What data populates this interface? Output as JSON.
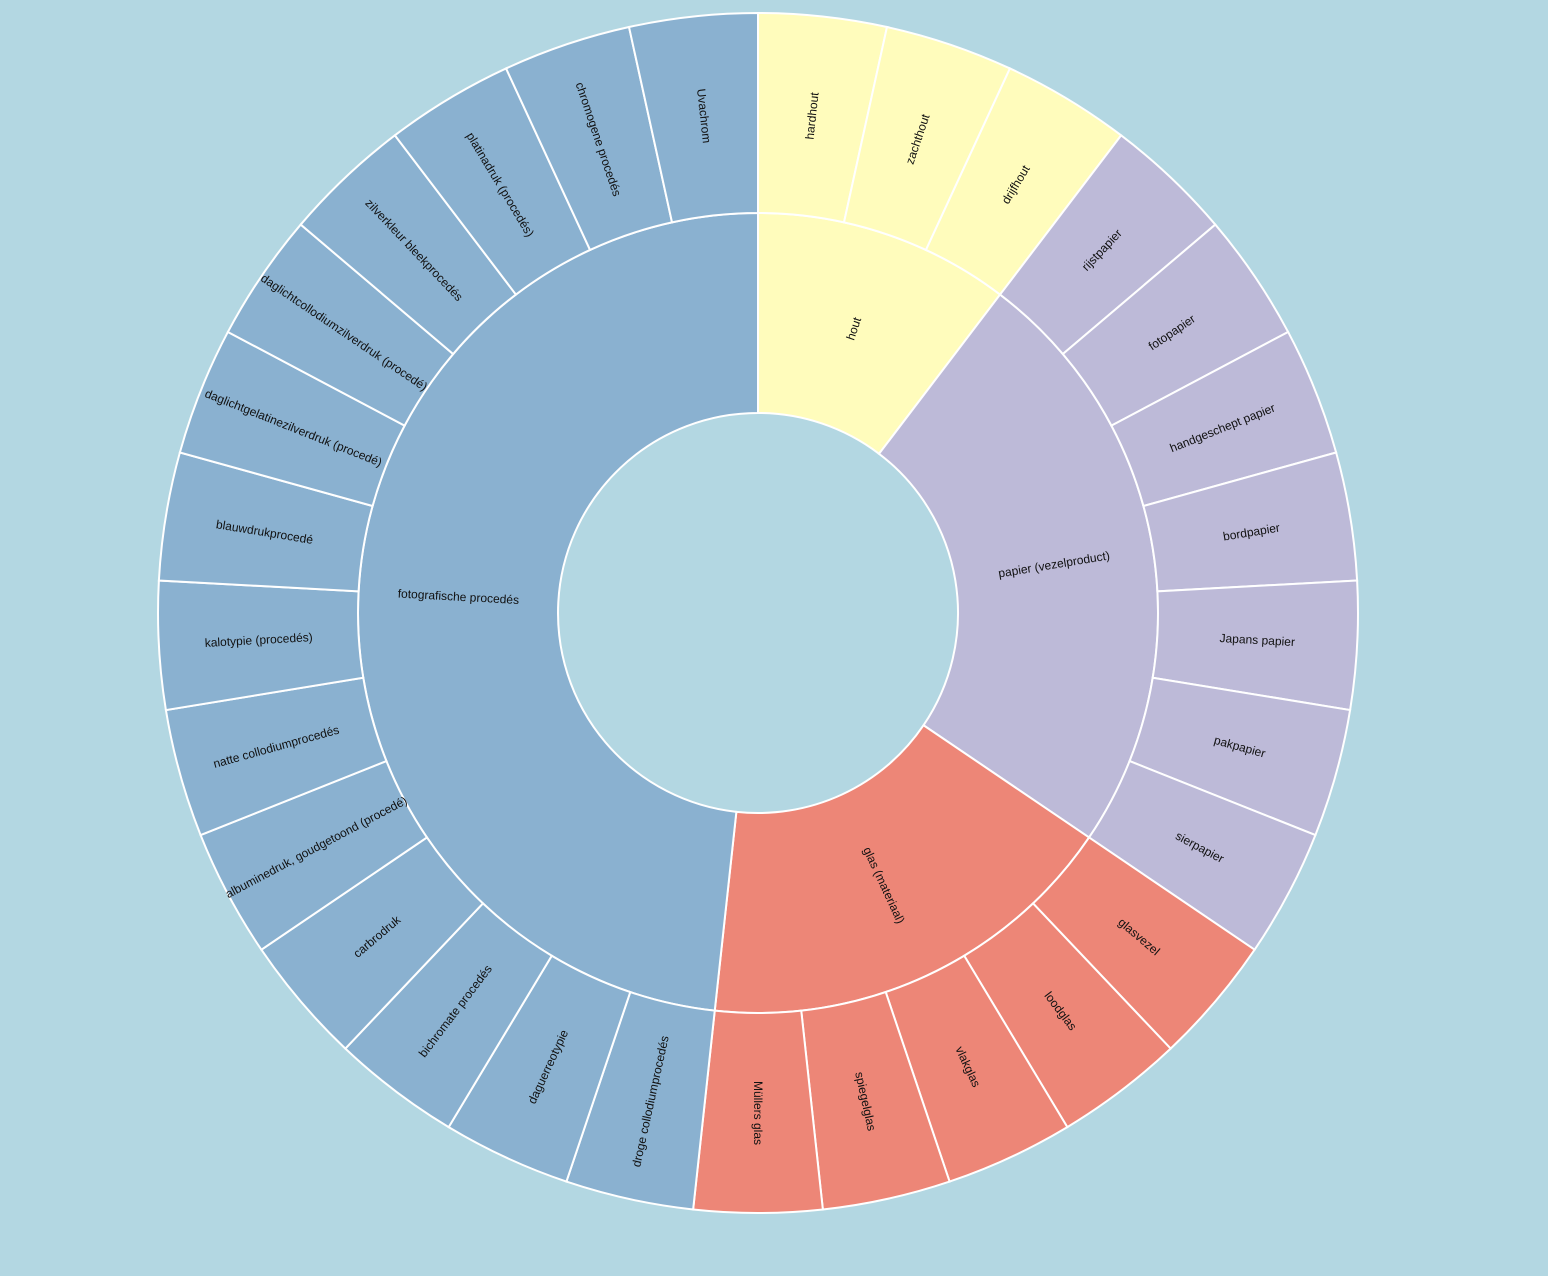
{
  "colors": {
    "background": "#b3d7e2",
    "fotografische procedés": "#8ab1d0",
    "hout": "#fffcbc",
    "papier (vezelproduct)": "#bdbad8",
    "glas (materiaal)": "#ed8677",
    "separator": "#ffffff"
  },
  "chart_data": {
    "type": "sunburst",
    "groups": [
      {
        "name": "hout",
        "color": "#fffcbc",
        "children": [
          "hardhout",
          "zachthout",
          "drijfhout"
        ]
      },
      {
        "name": "papier (vezelproduct)",
        "color": "#bdbad8",
        "children": [
          "rijstpapier",
          "fotopapier",
          "handgeschept papier",
          "bordpapier",
          "Japans papier",
          "pakpapier",
          "sierpapier"
        ]
      },
      {
        "name": "glas (materiaal)",
        "color": "#ed8677",
        "children": [
          "glasvezel",
          "loodglas",
          "vlakglas",
          "spiegelglas",
          "Müllers glas"
        ]
      },
      {
        "name": "fotografische procedés",
        "color": "#8ab1d0",
        "children": [
          "droge collodiumprocedés",
          "daguerreotypie",
          "bichromate procedés",
          "carbrodruk",
          "albuminedruk, goudgetoond (procedé)",
          "natte collodiumprocedés",
          "kalotypie (procedés)",
          "blauwdrukprocedé",
          "daglichtgelatinezilverdruk (procedé)",
          "daglichtcollodiumzilverdruk (procedé)",
          "zilverkleur bleekprocedés",
          "platinadruk (procedés)",
          "chromogene procedés",
          "Uvachrom"
        ]
      }
    ],
    "leaf_value": 1
  }
}
